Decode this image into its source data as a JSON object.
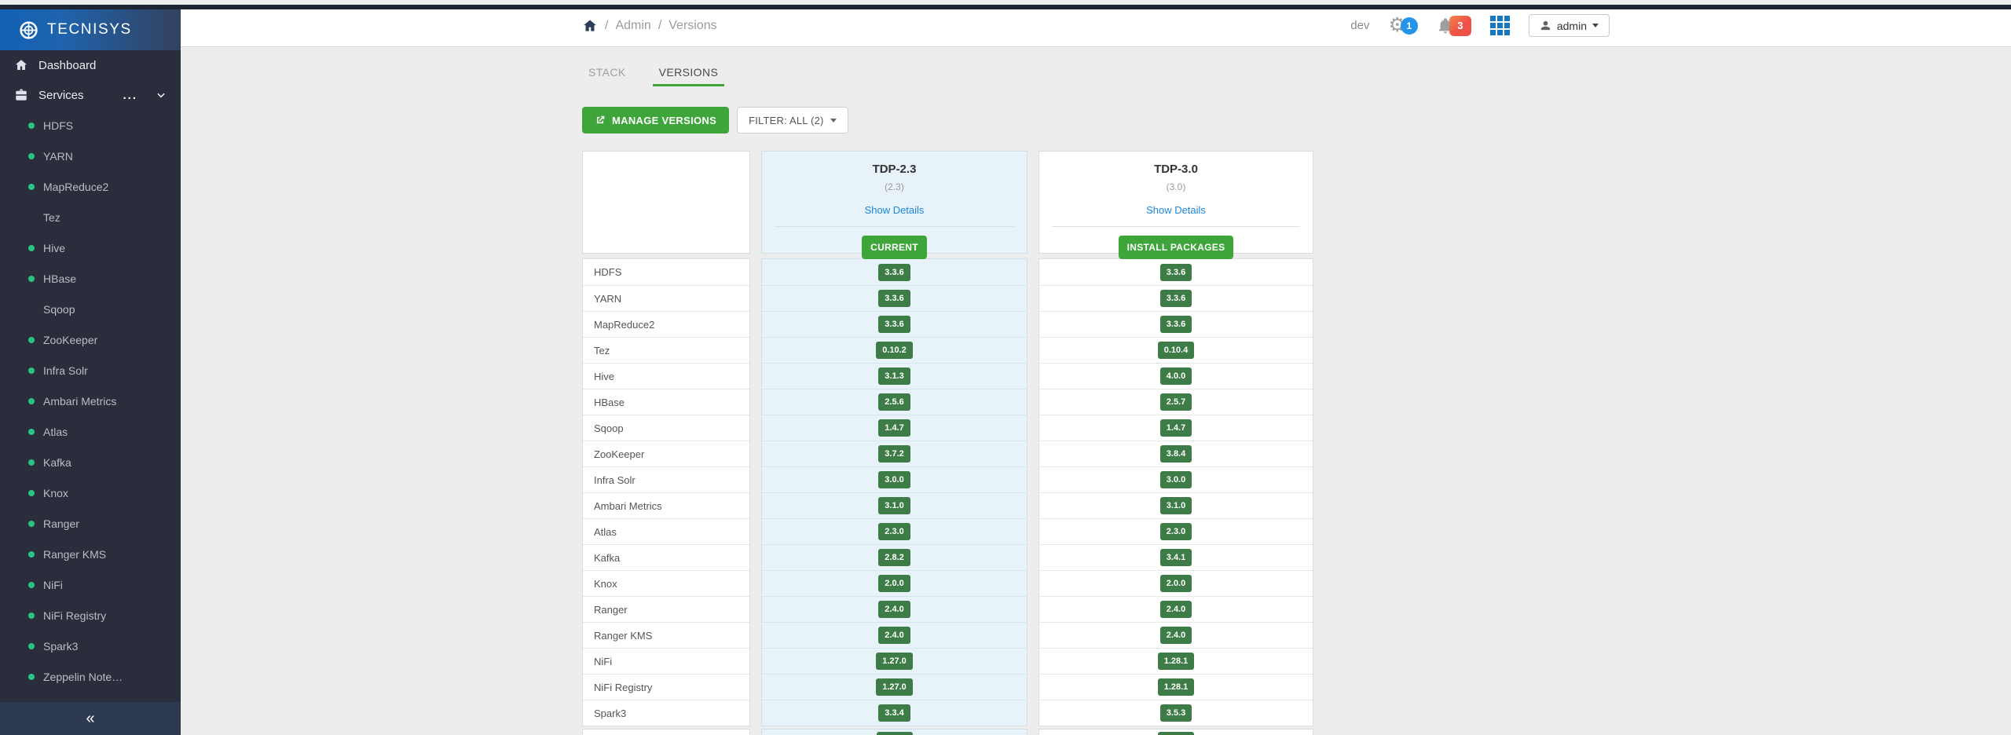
{
  "app": {
    "brand": "TECNISYS"
  },
  "header": {
    "breadcrumb": {
      "items": [
        "Admin",
        "Versions"
      ],
      "separator": "/"
    },
    "cluster_name": "dev",
    "settings_badge": "1",
    "alerts_badge": "3",
    "gear_glyph": "⚙",
    "user_label": "admin"
  },
  "sidebar": {
    "dashboard_label": "Dashboard",
    "services_label": "Services",
    "overflow_icon": "...",
    "collapse_icon": "«",
    "services": [
      {
        "name": "HDFS",
        "status_dot": true
      },
      {
        "name": "YARN",
        "status_dot": true
      },
      {
        "name": "MapReduce2",
        "status_dot": true
      },
      {
        "name": "Tez",
        "status_dot": false
      },
      {
        "name": "Hive",
        "status_dot": true
      },
      {
        "name": "HBase",
        "status_dot": true
      },
      {
        "name": "Sqoop",
        "status_dot": false
      },
      {
        "name": "ZooKeeper",
        "status_dot": true
      },
      {
        "name": "Infra Solr",
        "status_dot": true
      },
      {
        "name": "Ambari Metrics",
        "status_dot": true
      },
      {
        "name": "Atlas",
        "status_dot": true
      },
      {
        "name": "Kafka",
        "status_dot": true
      },
      {
        "name": "Knox",
        "status_dot": true
      },
      {
        "name": "Ranger",
        "status_dot": true
      },
      {
        "name": "Ranger KMS",
        "status_dot": true
      },
      {
        "name": "NiFi",
        "status_dot": true
      },
      {
        "name": "NiFi Registry",
        "status_dot": true
      },
      {
        "name": "Spark3",
        "status_dot": true
      },
      {
        "name": "Zeppelin Note…",
        "status_dot": true
      }
    ]
  },
  "tabs": [
    {
      "label": "STACK",
      "active": false
    },
    {
      "label": "VERSIONS",
      "active": true
    }
  ],
  "actions": {
    "manage_versions_label": "MANAGE VERSIONS",
    "filter_label": "FILTER: ALL (2)"
  },
  "versions_table": {
    "stacks": [
      {
        "name": "TDP-2.3",
        "sub": "(2.3)",
        "details_link": "Show Details",
        "action_label": "CURRENT"
      },
      {
        "name": "TDP-3.0",
        "sub": "(3.0)",
        "details_link": "Show Details",
        "action_label": "INSTALL PACKAGES"
      }
    ],
    "rows": [
      {
        "service": "HDFS",
        "tdp23": "3.3.6",
        "tdp30": "3.3.6"
      },
      {
        "service": "YARN",
        "tdp23": "3.3.6",
        "tdp30": "3.3.6"
      },
      {
        "service": "MapReduce2",
        "tdp23": "3.3.6",
        "tdp30": "3.3.6"
      },
      {
        "service": "Tez",
        "tdp23": "0.10.2",
        "tdp30": "0.10.4"
      },
      {
        "service": "Hive",
        "tdp23": "3.1.3",
        "tdp30": "4.0.0"
      },
      {
        "service": "HBase",
        "tdp23": "2.5.6",
        "tdp30": "2.5.7"
      },
      {
        "service": "Sqoop",
        "tdp23": "1.4.7",
        "tdp30": "1.4.7"
      },
      {
        "service": "ZooKeeper",
        "tdp23": "3.7.2",
        "tdp30": "3.8.4"
      },
      {
        "service": "Infra Solr",
        "tdp23": "3.0.0",
        "tdp30": "3.0.0"
      },
      {
        "service": "Ambari Metrics",
        "tdp23": "3.1.0",
        "tdp30": "3.1.0"
      },
      {
        "service": "Atlas",
        "tdp23": "2.3.0",
        "tdp30": "2.3.0"
      },
      {
        "service": "Kafka",
        "tdp23": "2.8.2",
        "tdp30": "3.4.1"
      },
      {
        "service": "Knox",
        "tdp23": "2.0.0",
        "tdp30": "2.0.0"
      },
      {
        "service": "Ranger",
        "tdp23": "2.4.0",
        "tdp30": "2.4.0"
      },
      {
        "service": "Ranger KMS",
        "tdp23": "2.4.0",
        "tdp30": "2.4.0"
      },
      {
        "service": "NiFi",
        "tdp23": "1.27.0",
        "tdp30": "1.28.1"
      },
      {
        "service": "NiFi Registry",
        "tdp23": "1.27.0",
        "tdp30": "1.28.1"
      },
      {
        "service": "Spark3",
        "tdp23": "3.3.4",
        "tdp30": "3.5.3"
      }
    ]
  },
  "colors": {
    "topstrip": "#1d2433",
    "sidebar_bg": "#2a2e3c",
    "sidebar_footer_bg": "#2d3950",
    "logo_grad_left": "#1362b5",
    "logo_grad_right": "#33415e",
    "status_dot": "#29c485",
    "green": "#3da53a",
    "version_badge_green": "#3d7c46",
    "link_blue": "#1b87d8",
    "settings_badge_blue": "#2493ea",
    "alerts_badge_red": "#ee5247",
    "grid_blue": "#1878bf",
    "current_col_bg": "#e7f2f9",
    "main_bg": "#ededed"
  }
}
